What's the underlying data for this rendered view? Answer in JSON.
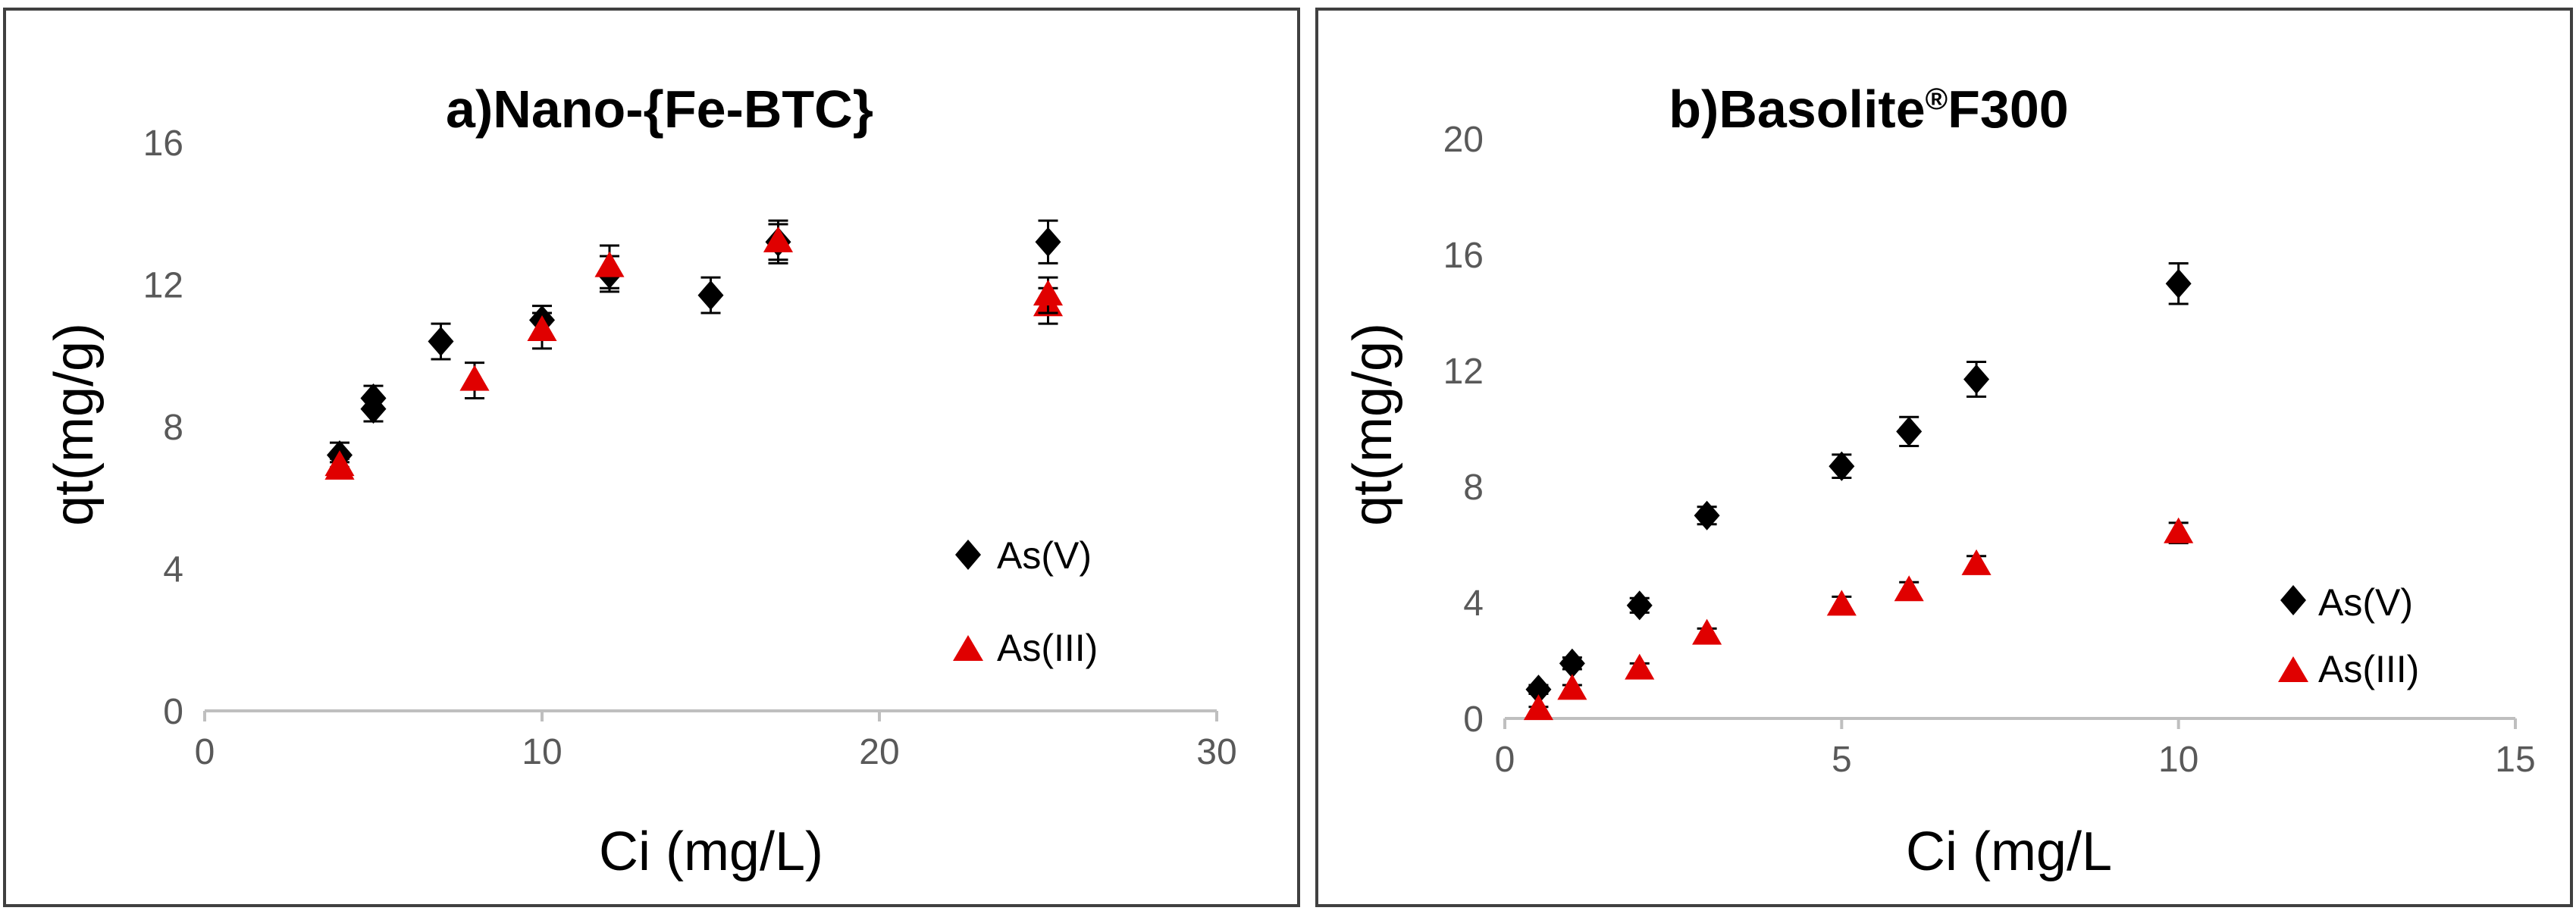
{
  "figure": {
    "colors": {
      "as_v": "#000000",
      "as_iii": "#e00000",
      "axis": "#bfbfbf",
      "text": "#595959",
      "border": "#404040"
    }
  },
  "chart_data": [
    {
      "type": "scatter",
      "title": "a)Nano-{Fe-BTC}",
      "xlabel": "Ci (mg/L)",
      "ylabel": "qt(mg/g)",
      "xlim": [
        0,
        30
      ],
      "ylim": [
        0,
        16
      ],
      "xticks": [
        0,
        10,
        20,
        30
      ],
      "yticks": [
        0,
        4,
        8,
        12,
        16
      ],
      "xtick_labels": [
        "0",
        "10",
        "20",
        "30"
      ],
      "ytick_labels": [
        "0",
        "4",
        "8",
        "12",
        "16"
      ],
      "grid": false,
      "legend_position": "bottom-right",
      "series": [
        {
          "name": "As(V)",
          "marker": "diamond",
          "color": "#000000",
          "x": [
            4,
            5,
            5,
            7,
            10,
            12,
            15,
            17,
            25
          ],
          "y": [
            7.2,
            8.5,
            8.8,
            10.4,
            11.0,
            12.3,
            11.7,
            13.2,
            13.2
          ],
          "err": [
            0.35,
            0.35,
            0.35,
            0.5,
            0.4,
            0.5,
            0.5,
            0.5,
            0.6
          ]
        },
        {
          "name": "As(III)",
          "marker": "triangle",
          "color": "#e00000",
          "x": [
            4,
            4,
            8,
            10,
            12,
            17,
            25,
            25
          ],
          "y": [
            6.8,
            6.9,
            9.3,
            10.7,
            12.5,
            13.2,
            11.4,
            11.7
          ],
          "err": [
            0.2,
            0.2,
            0.5,
            0.5,
            0.6,
            0.6,
            0.5,
            0.5
          ]
        }
      ]
    },
    {
      "type": "scatter",
      "title_main": "b)Basolite",
      "title_sup": "®",
      "title_end": "F300",
      "xlabel": "Ci (mg/L",
      "ylabel": "qt(mg/g)",
      "xlim": [
        0,
        15
      ],
      "ylim": [
        0,
        20
      ],
      "xticks": [
        0,
        5,
        10,
        15
      ],
      "yticks": [
        0,
        4,
        8,
        12,
        16,
        20
      ],
      "xtick_labels": [
        "0",
        "5",
        "10",
        "15"
      ],
      "ytick_labels": [
        "0",
        "4",
        "8",
        "12",
        "16",
        "20"
      ],
      "grid": false,
      "legend_position": "bottom-right",
      "series": [
        {
          "name": "As(V)",
          "marker": "diamond",
          "color": "#000000",
          "x": [
            0.5,
            1,
            2,
            3,
            5,
            6,
            7,
            10
          ],
          "y": [
            1.0,
            1.9,
            3.9,
            7.0,
            8.7,
            9.9,
            11.7,
            15.0
          ],
          "err": [
            0.15,
            0.2,
            0.25,
            0.3,
            0.4,
            0.5,
            0.6,
            0.7
          ]
        },
        {
          "name": "As(III)",
          "marker": "triangle",
          "color": "#e00000",
          "x": [
            0.5,
            1,
            2,
            3,
            5,
            6,
            7,
            10
          ],
          "y": [
            0.3,
            1.0,
            1.7,
            2.9,
            3.9,
            4.4,
            5.3,
            6.4
          ],
          "err": [
            0.1,
            0.15,
            0.2,
            0.2,
            0.3,
            0.3,
            0.3,
            0.35
          ]
        }
      ]
    }
  ]
}
